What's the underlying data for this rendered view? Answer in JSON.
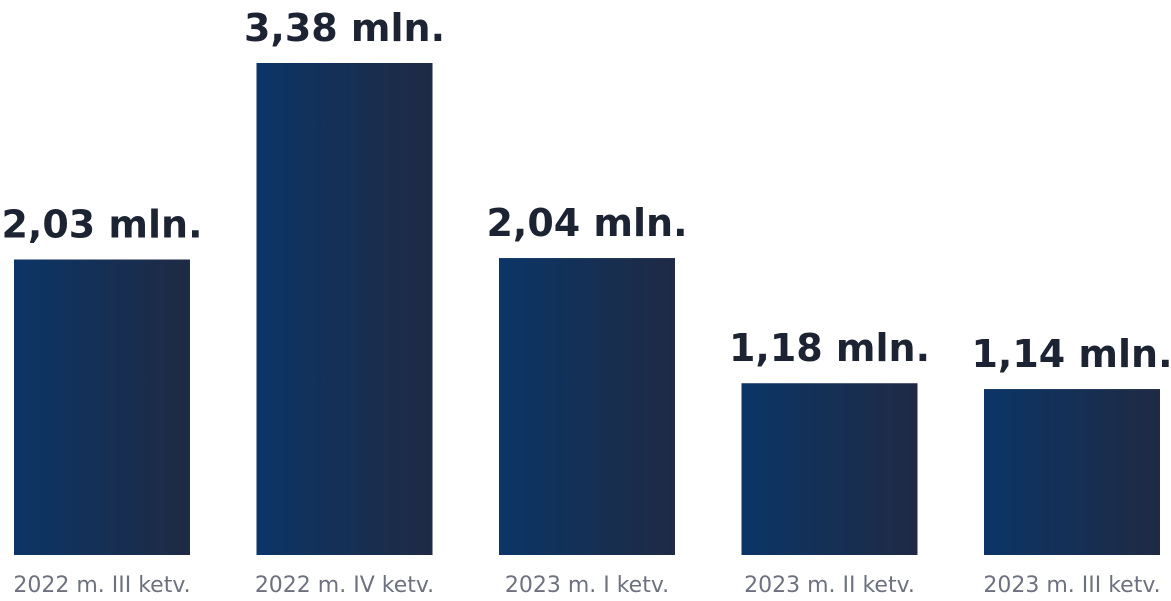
{
  "chart_data": {
    "type": "bar",
    "title": "",
    "xlabel": "",
    "ylabel": "",
    "categories": [
      "2022 m. III ketv.",
      "2022 m. IV ketv.",
      "2023 m. I ketv.",
      "2023 m. II ketv.",
      "2023 m. III ketv."
    ],
    "values": [
      2.03,
      3.38,
      2.04,
      1.18,
      1.14
    ],
    "value_labels": [
      "2,03 mln.",
      "3,38 mln.",
      "2,04 mln.",
      "1,18 mln.",
      "1,14 mln."
    ],
    "unit": "mln.",
    "ylim": [
      0,
      3.38
    ],
    "grid": false,
    "legend": "none",
    "colors": {
      "bar_gradient_start": "#0b3566",
      "bar_gradient_end": "#1f2a44",
      "value_text": "#1c2333",
      "category_text": "#6e7280",
      "background": "#ffffff"
    }
  }
}
